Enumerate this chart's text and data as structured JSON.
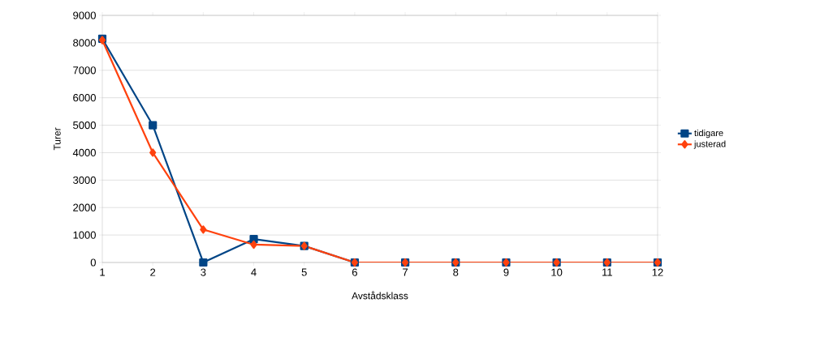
{
  "chart_data": {
    "type": "line",
    "xlabel": "Avstådsklass",
    "ylabel": "Turer",
    "categories": [
      "1",
      "2",
      "3",
      "4",
      "5",
      "6",
      "7",
      "8",
      "9",
      "10",
      "11",
      "12"
    ],
    "series": [
      {
        "name": "tidigare",
        "color": "#004586",
        "marker": "square",
        "values": [
          8150,
          5000,
          0,
          850,
          600,
          0,
          0,
          0,
          0,
          0,
          0,
          0
        ]
      },
      {
        "name": "justerad",
        "color": "#ff420e",
        "marker": "diamond",
        "values": [
          8100,
          4000,
          1200,
          650,
          600,
          0,
          0,
          0,
          0,
          0,
          0,
          0
        ]
      }
    ],
    "ylim": [
      0,
      9000
    ],
    "yticks": [
      0,
      1000,
      2000,
      3000,
      4000,
      5000,
      6000,
      7000,
      8000,
      9000
    ],
    "grid": "y",
    "legend": "right",
    "line_style": "solid"
  }
}
